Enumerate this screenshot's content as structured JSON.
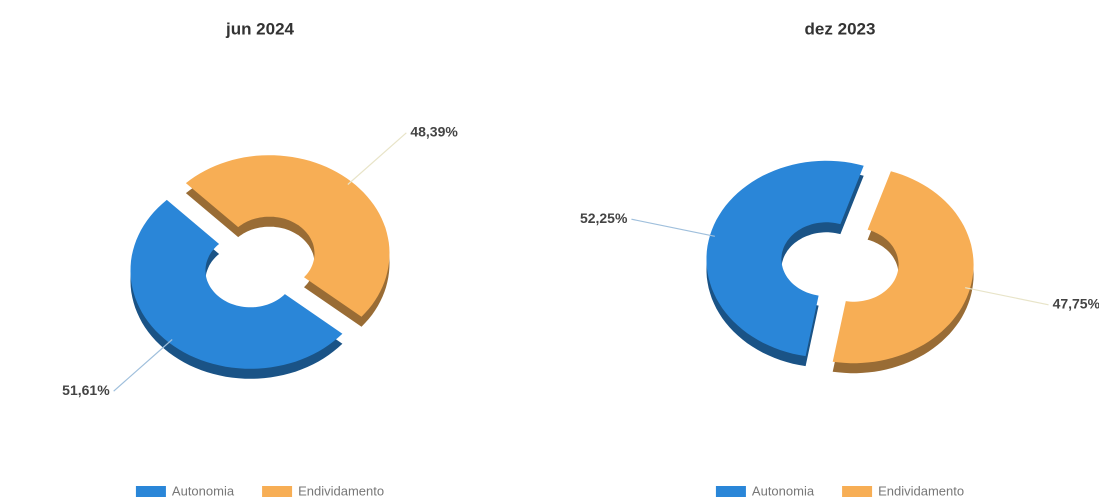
{
  "chart_data": [
    {
      "type": "donut",
      "title": "jun 2024",
      "categories": [
        "Autonomia",
        "Endividamento"
      ],
      "values": [
        51.61,
        48.39
      ],
      "value_labels": [
        "51,61%",
        "48,39%"
      ],
      "colors": [
        "#2a86d8",
        "#f7ae55"
      ],
      "start_angle": 130,
      "legend": "bottom"
    },
    {
      "type": "donut",
      "title": "dez 2023",
      "categories": [
        "Autonomia",
        "Endividamento"
      ],
      "values": [
        52.25,
        47.75
      ],
      "value_labels": [
        "52,25%",
        "47,75%"
      ],
      "colors": [
        "#2a86d8",
        "#f7ae55"
      ],
      "start_angle": 190,
      "legend": "bottom"
    }
  ]
}
